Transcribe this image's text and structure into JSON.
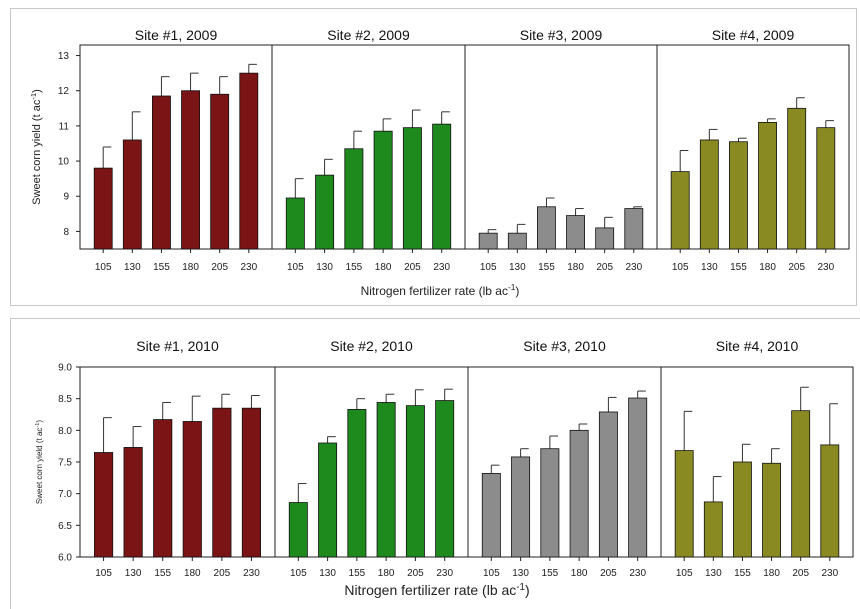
{
  "colors": {
    "site1": "#7b1414",
    "site2": "#1e8a1e",
    "site3": "#8c8c8c",
    "site4": "#8a8a22"
  },
  "chart_data": [
    {
      "type": "bar",
      "year": "2009",
      "ylabel_main": "Sweet corn yield (t ac",
      "ylabel_sup": "-1",
      "ylabel_end": ")",
      "xlabel_main": "Nitrogen fertilizer rate (lb ac",
      "xlabel_sup": "-1",
      "xlabel_end": ")",
      "ylim": [
        7.5,
        13.3
      ],
      "yticks": [
        "8",
        "9",
        "10",
        "11",
        "12",
        "13"
      ],
      "categories": [
        "105",
        "130",
        "155",
        "180",
        "205",
        "230"
      ],
      "panels": [
        {
          "title": "Site #1, 2009",
          "values": [
            9.8,
            10.6,
            11.85,
            12.0,
            11.9,
            12.5
          ],
          "errors": [
            0.6,
            0.8,
            0.55,
            0.5,
            0.5,
            0.25
          ]
        },
        {
          "title": "Site #2, 2009",
          "values": [
            8.95,
            9.6,
            10.35,
            10.85,
            10.95,
            11.05
          ],
          "errors": [
            0.55,
            0.45,
            0.5,
            0.35,
            0.5,
            0.35
          ]
        },
        {
          "title": "Site #3, 2009",
          "values": [
            7.95,
            7.95,
            8.7,
            8.45,
            8.1,
            8.65
          ],
          "errors": [
            0.1,
            0.25,
            0.25,
            0.2,
            0.3,
            0.05
          ]
        },
        {
          "title": "Site #4, 2009",
          "values": [
            9.7,
            10.6,
            10.55,
            11.1,
            11.5,
            10.95
          ],
          "errors": [
            0.6,
            0.3,
            0.1,
            0.1,
            0.3,
            0.2
          ]
        }
      ]
    },
    {
      "type": "bar",
      "year": "2010",
      "ylabel_main": "Sweet corn yield (t ac",
      "ylabel_sup": "-1",
      "ylabel_end": ")",
      "xlabel_main": "Nitrogen fertilizer rate (lb ac",
      "xlabel_sup": "-1",
      "xlabel_end": ")",
      "ylim": [
        6.0,
        9.0
      ],
      "yticks": [
        "6.0",
        "6.5",
        "7.0",
        "7.5",
        "8.0",
        "8.5",
        "9.0"
      ],
      "categories": [
        "105",
        "130",
        "155",
        "180",
        "205",
        "230"
      ],
      "panels": [
        {
          "title": "Site #1, 2010",
          "values": [
            7.65,
            7.73,
            8.17,
            8.14,
            8.35,
            8.35
          ],
          "errors": [
            0.55,
            0.33,
            0.27,
            0.4,
            0.22,
            0.2
          ]
        },
        {
          "title": "Site #2, 2010",
          "values": [
            6.86,
            7.8,
            8.33,
            8.44,
            8.39,
            8.47
          ],
          "errors": [
            0.3,
            0.1,
            0.17,
            0.13,
            0.25,
            0.18
          ]
        },
        {
          "title": "Site #3, 2010",
          "values": [
            7.32,
            7.58,
            7.71,
            8.0,
            8.29,
            8.51
          ],
          "errors": [
            0.13,
            0.13,
            0.2,
            0.1,
            0.23,
            0.11
          ]
        },
        {
          "title": "Site #4, 2010",
          "values": [
            7.68,
            6.87,
            7.5,
            7.48,
            8.31,
            7.77
          ],
          "errors": [
            0.62,
            0.4,
            0.28,
            0.23,
            0.37,
            0.65
          ]
        }
      ]
    }
  ]
}
